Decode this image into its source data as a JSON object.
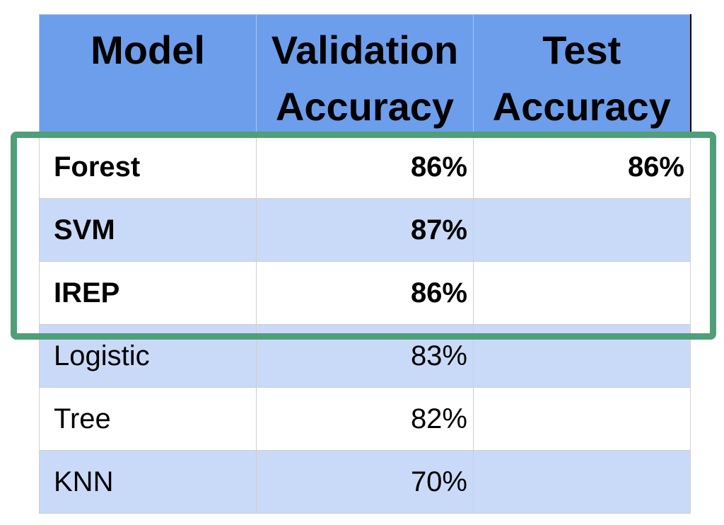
{
  "table": {
    "headers": {
      "model": [
        "Model"
      ],
      "validation": [
        "Validation",
        "Accuracy"
      ],
      "test": [
        "Test",
        "Accuracy"
      ]
    },
    "rows": [
      {
        "model": "Forest",
        "validation": "86%",
        "test": "86%",
        "bold": true
      },
      {
        "model": "SVM",
        "validation": "87%",
        "test": "",
        "bold": true
      },
      {
        "model": "IREP",
        "validation": "86%",
        "test": "",
        "bold": true
      },
      {
        "model": "Logistic",
        "validation": "83%",
        "test": "",
        "bold": false
      },
      {
        "model": "Tree",
        "validation": "82%",
        "test": "",
        "bold": false
      },
      {
        "model": "KNN",
        "validation": "70%",
        "test": "",
        "bold": false
      }
    ]
  },
  "colors": {
    "header_bg": "#6d9eeb",
    "row_alt_bg": "#c9daf8",
    "row_bg": "#ffffff",
    "highlight_border": "#4f9f79"
  },
  "highlight": {
    "rows_highlighted": [
      "Forest",
      "SVM",
      "IREP"
    ]
  }
}
